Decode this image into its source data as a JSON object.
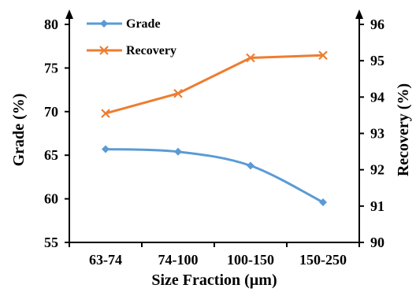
{
  "chart_data": {
    "type": "line",
    "categories": [
      "63-74",
      "74-100",
      "100-150",
      "150-250"
    ],
    "xlabel": "Size Fraction (µm)",
    "ylabel_left": "Grade (%)",
    "ylabel_right": "Recovery (%)",
    "y_left_range": [
      55,
      80
    ],
    "y_left_ticks": [
      "55",
      "60",
      "65",
      "70",
      "75",
      "80"
    ],
    "y_right_range": [
      90,
      96
    ],
    "y_right_ticks": [
      "90",
      "91",
      "92",
      "93",
      "94",
      "95",
      "96"
    ],
    "grid": false,
    "legend_position": "top-left",
    "series": [
      {
        "name": "Grade",
        "axis": "left",
        "marker": "diamond",
        "color": "#5b9bd5",
        "smooth": true,
        "values": [
          65.7,
          65.4,
          63.8,
          59.6
        ]
      },
      {
        "name": "Recovery",
        "axis": "right",
        "marker": "x",
        "color": "#ed7d31",
        "smooth": false,
        "values": [
          93.55,
          94.1,
          95.08,
          95.15
        ]
      }
    ]
  }
}
